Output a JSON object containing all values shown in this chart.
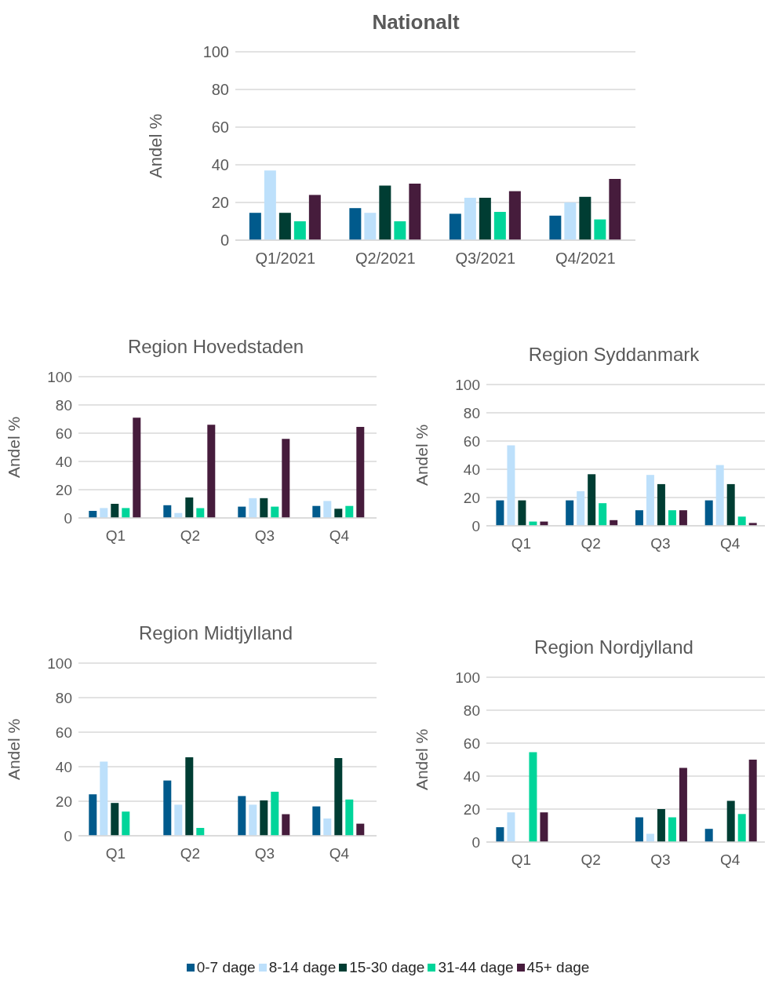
{
  "chart_data": [
    {
      "type": "bar",
      "title": "Nationalt",
      "ylabel": "Andel %",
      "categories": [
        "Q1/2021",
        "Q2/2021",
        "Q3/2021",
        "Q4/2021"
      ],
      "ylim": [
        0,
        100
      ],
      "yticks": [
        0,
        20,
        40,
        60,
        80,
        100
      ],
      "grid": "y",
      "series": [
        {
          "color": "#005a8c",
          "values": [
            14.5,
            17,
            14,
            13
          ]
        },
        {
          "color": "#bde0fb",
          "values": [
            37,
            14.5,
            22.5,
            20
          ]
        },
        {
          "color": "#003d33",
          "values": [
            14.5,
            29,
            22.5,
            23
          ]
        },
        {
          "color": "#00d59a",
          "values": [
            10,
            10,
            15,
            11
          ]
        },
        {
          "color": "#461c3c",
          "values": [
            24,
            30,
            26,
            32.5
          ]
        }
      ]
    },
    {
      "type": "bar",
      "title": "Region Hovedstaden",
      "ylabel": "Andel %",
      "categories": [
        "Q1",
        "Q2",
        "Q3",
        "Q4"
      ],
      "ylim": [
        0,
        100
      ],
      "yticks": [
        0,
        20,
        40,
        60,
        80,
        100
      ],
      "grid": "y",
      "series": [
        {
          "color": "#005a8c",
          "values": [
            5,
            9,
            8,
            8.5
          ]
        },
        {
          "color": "#bde0fb",
          "values": [
            7,
            3.5,
            14,
            12
          ]
        },
        {
          "color": "#003d33",
          "values": [
            10,
            14.5,
            14,
            6.5
          ]
        },
        {
          "color": "#00d59a",
          "values": [
            7,
            7,
            8,
            8.5
          ]
        },
        {
          "color": "#461c3c",
          "values": [
            71,
            66,
            56,
            64.5
          ]
        }
      ]
    },
    {
      "type": "bar",
      "title": "Region Syddanmark",
      "ylabel": "Andel %",
      "categories": [
        "Q1",
        "Q2",
        "Q3",
        "Q4"
      ],
      "ylim": [
        0,
        100
      ],
      "yticks": [
        0,
        20,
        40,
        60,
        80,
        100
      ],
      "grid": "y",
      "series": [
        {
          "color": "#005a8c",
          "values": [
            18,
            18,
            11,
            18
          ]
        },
        {
          "color": "#bde0fb",
          "values": [
            57,
            24.5,
            36,
            43
          ]
        },
        {
          "color": "#003d33",
          "values": [
            18,
            36.5,
            29.5,
            29.5
          ]
        },
        {
          "color": "#00d59a",
          "values": [
            3,
            16,
            11,
            6.5
          ]
        },
        {
          "color": "#461c3c",
          "values": [
            3,
            4,
            11,
            2
          ]
        }
      ]
    },
    {
      "type": "bar",
      "title": "Region Midtjylland",
      "ylabel": "Andel %",
      "categories": [
        "Q1",
        "Q2",
        "Q3",
        "Q4"
      ],
      "ylim": [
        0,
        100
      ],
      "yticks": [
        0,
        20,
        40,
        60,
        80,
        100
      ],
      "grid": "y",
      "series": [
        {
          "color": "#005a8c",
          "values": [
            24,
            32,
            23,
            17
          ]
        },
        {
          "color": "#bde0fb",
          "values": [
            43,
            18,
            18,
            10
          ]
        },
        {
          "color": "#003d33",
          "values": [
            19,
            45.5,
            20.5,
            45
          ]
        },
        {
          "color": "#00d59a",
          "values": [
            14,
            4.5,
            25.5,
            21
          ]
        },
        {
          "color": "#461c3c",
          "values": [
            null,
            null,
            12.5,
            7
          ]
        }
      ]
    },
    {
      "type": "bar",
      "title": "Region Nordjylland",
      "ylabel": "Andel %",
      "categories": [
        "Q1",
        "Q2",
        "Q3",
        "Q4"
      ],
      "ylim": [
        0,
        100
      ],
      "yticks": [
        0,
        20,
        40,
        60,
        80,
        100
      ],
      "grid": "y",
      "legend": "bottom",
      "series": [
        {
          "name": "0-7 dage",
          "color": "#005a8c",
          "values": [
            9,
            null,
            15,
            8
          ]
        },
        {
          "name": "8-14 dage",
          "color": "#bde0fb",
          "values": [
            18,
            null,
            5,
            null
          ]
        },
        {
          "name": "15-30 dage",
          "color": "#003d33",
          "values": [
            null,
            null,
            20,
            25
          ]
        },
        {
          "name": "31-44 dage",
          "color": "#00d59a",
          "values": [
            54.5,
            null,
            15,
            17
          ]
        },
        {
          "name": "45+ dage",
          "color": "#461c3c",
          "values": [
            18,
            null,
            45,
            50
          ]
        }
      ]
    }
  ]
}
